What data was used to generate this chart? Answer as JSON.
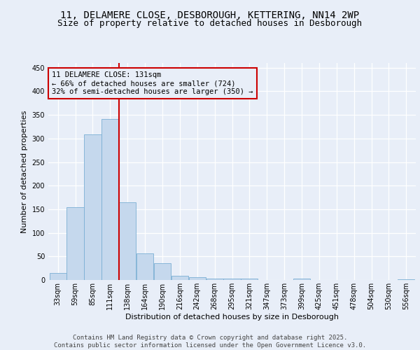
{
  "title_line1": "11, DELAMERE CLOSE, DESBOROUGH, KETTERING, NN14 2WP",
  "title_line2": "Size of property relative to detached houses in Desborough",
  "xlabel": "Distribution of detached houses by size in Desborough",
  "ylabel": "Number of detached properties",
  "bar_color": "#c5d8ed",
  "bar_edge_color": "#7aafd4",
  "annotation_line_color": "#cc0000",
  "annotation_box_color": "#cc0000",
  "annotation_text": "11 DELAMERE CLOSE: 131sqm\n← 66% of detached houses are smaller (724)\n32% of semi-detached houses are larger (350) →",
  "property_size": 131,
  "categories": [
    "33sqm",
    "59sqm",
    "85sqm",
    "111sqm",
    "138sqm",
    "164sqm",
    "190sqm",
    "216sqm",
    "242sqm",
    "268sqm",
    "295sqm",
    "321sqm",
    "347sqm",
    "373sqm",
    "399sqm",
    "425sqm",
    "451sqm",
    "478sqm",
    "504sqm",
    "530sqm",
    "556sqm"
  ],
  "values": [
    15,
    155,
    308,
    342,
    165,
    57,
    35,
    9,
    6,
    3,
    3,
    3,
    0,
    0,
    3,
    0,
    0,
    0,
    0,
    0,
    2
  ],
  "ylim": [
    0,
    460
  ],
  "yticks": [
    0,
    50,
    100,
    150,
    200,
    250,
    300,
    350,
    400,
    450
  ],
  "background_color": "#e8eef8",
  "footer_text": "Contains HM Land Registry data © Crown copyright and database right 2025.\nContains public sector information licensed under the Open Government Licence v3.0.",
  "title_fontsize": 10,
  "subtitle_fontsize": 9,
  "axis_label_fontsize": 8,
  "tick_fontsize": 7,
  "annotation_fontsize": 7.5,
  "footer_fontsize": 6.5
}
